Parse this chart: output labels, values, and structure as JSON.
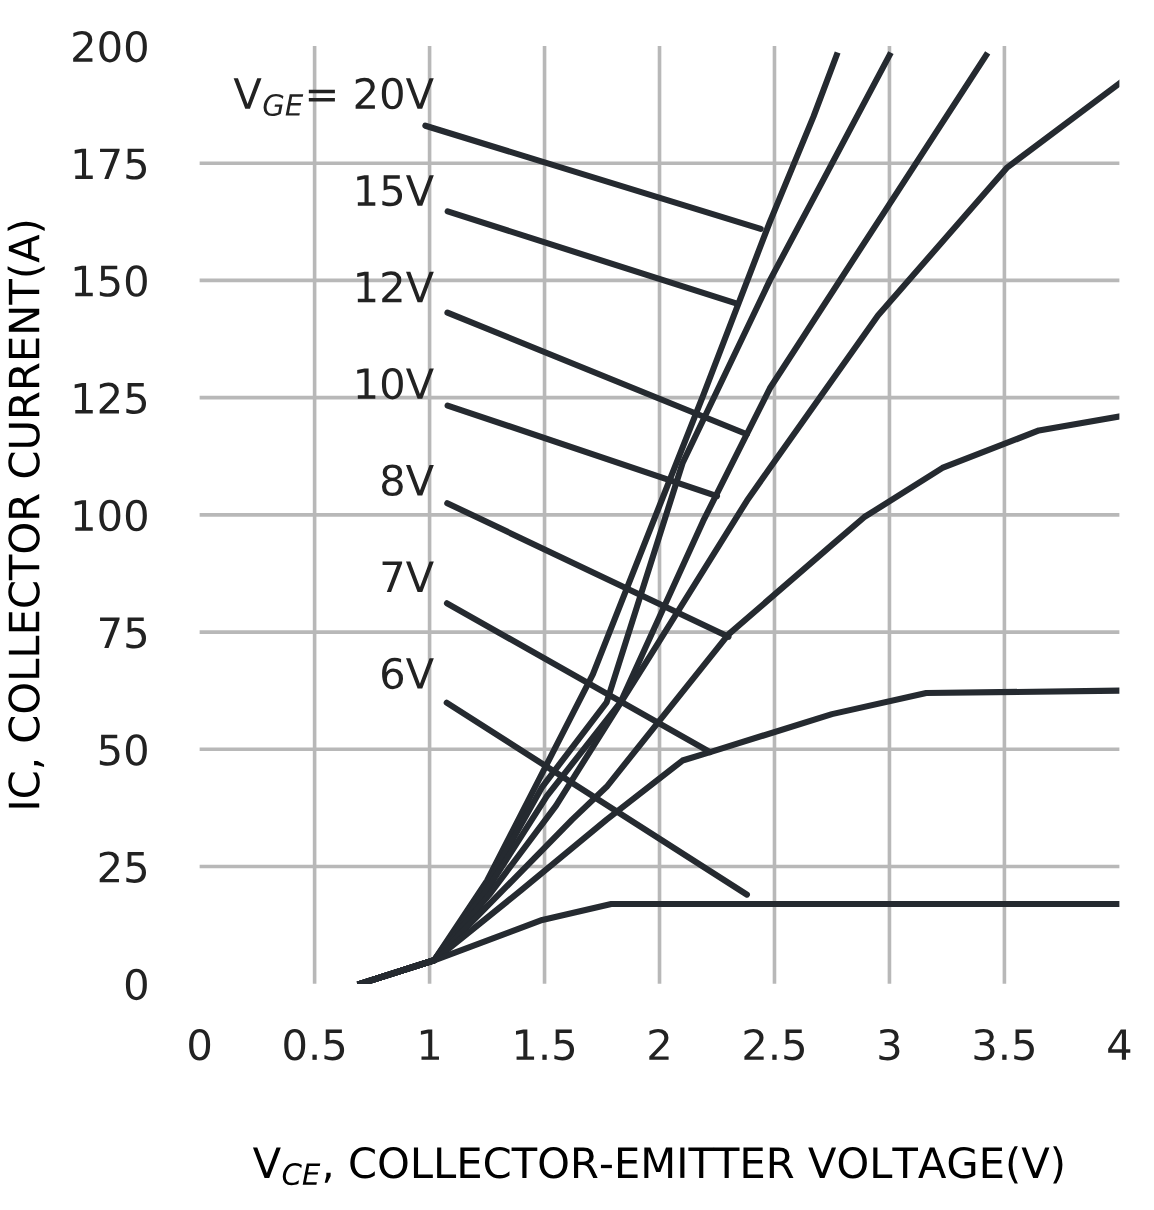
{
  "chart_data": {
    "type": "line",
    "xlabel": "V$_{CE}$, COLLECTOR-EMITTER VOLTAGE(V)",
    "ylabel": "IC, COLLECTOR CURRENT(A)",
    "xlim": [
      0,
      4
    ],
    "ylim": [
      0,
      200
    ],
    "xticks": [
      0,
      0.5,
      1,
      1.5,
      2,
      2.5,
      3,
      3.5,
      4
    ],
    "yticks": [
      0,
      25,
      50,
      75,
      100,
      125,
      150,
      175,
      200
    ],
    "grid": true,
    "marker": "none",
    "line_style": "solid",
    "series": [
      {
        "color": "#252a30",
        "x": [
          0.7,
          1.02,
          1.25,
          1.47,
          1.71,
          2.19,
          2.48,
          2.67,
          2.77
        ],
        "values": [
          0,
          5,
          22,
          43,
          66,
          125.5,
          162.5,
          185,
          198
        ]
      },
      {
        "color": "#252a30",
        "x": [
          0.7,
          1.02,
          1.25,
          1.49,
          1.77,
          2.1,
          2.48,
          3.0
        ],
        "values": [
          0,
          5,
          21,
          42,
          60,
          111,
          150,
          198
        ]
      },
      {
        "color": "#252a30",
        "x": [
          0.7,
          1.02,
          1.25,
          1.51,
          1.83,
          2.19,
          2.48,
          2.95,
          3.42
        ],
        "values": [
          0,
          5,
          20,
          40,
          60,
          98.7,
          127,
          162.5,
          198
        ]
      },
      {
        "color": "#252a30",
        "x": [
          0.7,
          1.02,
          1.26,
          1.55,
          1.96,
          2.38,
          2.48,
          2.95,
          3.51,
          4.0
        ],
        "values": [
          0,
          5,
          19,
          38,
          70,
          103,
          110,
          142.5,
          174,
          192
        ]
      },
      {
        "color": "#252a30",
        "x": [
          0.7,
          1.02,
          1.3,
          1.62,
          1.77,
          2.3,
          2.75,
          2.89,
          3.23,
          3.65,
          4.0
        ],
        "values": [
          0,
          5,
          19,
          35,
          42,
          74.5,
          93.6,
          99.5,
          110,
          118,
          121
        ]
      },
      {
        "color": "#252a30",
        "x": [
          0.7,
          1.02,
          1.4,
          1.77,
          2.1,
          2.22,
          2.75,
          3.16,
          4.0
        ],
        "values": [
          0,
          5,
          20,
          35,
          47.6,
          49.4,
          57.5,
          62,
          62.5
        ]
      },
      {
        "color": "#252a30",
        "x": [
          0.7,
          1.02,
          1.49,
          1.79,
          4.0
        ],
        "values": [
          0,
          5,
          13.6,
          17,
          17
        ]
      }
    ],
    "annotations": [
      {
        "text": "V$_{GE}$= 20V",
        "x": 2.44,
        "y": 161
      },
      {
        "text": "15V",
        "x": 2.34,
        "y": 145
      },
      {
        "text": "12V",
        "x": 2.38,
        "y": 117.2
      },
      {
        "text": "10V",
        "x": 2.25,
        "y": 104
      },
      {
        "text": "8V",
        "x": 2.3,
        "y": 74
      },
      {
        "text": "7V",
        "x": 2.22,
        "y": 49.4
      },
      {
        "text": "6V",
        "x": 2.38,
        "y": 19
      }
    ]
  }
}
